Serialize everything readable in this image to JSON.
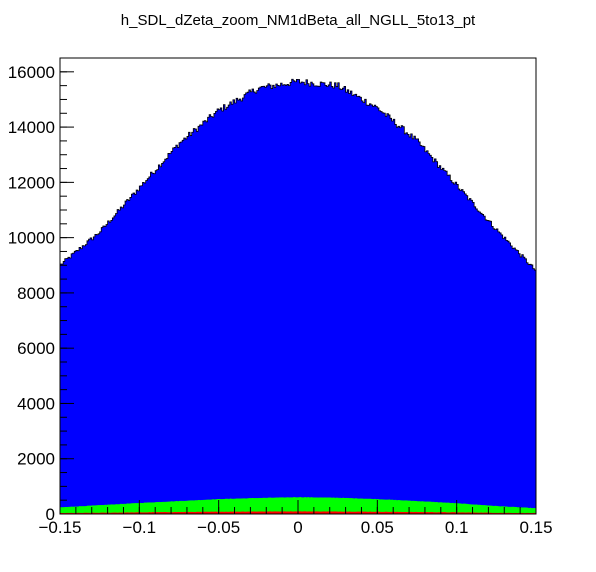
{
  "chart_data": {
    "type": "area",
    "title": "h_SDL_dZeta_zoom_NM1dBeta_all_NGLL_5to13_pt",
    "xlabel": "",
    "ylabel": "",
    "xlim": [
      -0.15,
      0.15
    ],
    "ylim": [
      0,
      16500
    ],
    "grid": false,
    "legend": "none",
    "x_ticks": [
      -0.15,
      -0.1,
      -0.05,
      0,
      0.05,
      0.1,
      0.15
    ],
    "x_tick_labels": [
      "−0.15",
      "−0.1",
      "−0.05",
      "0",
      "0.05",
      "0.1",
      "0.15"
    ],
    "y_ticks": [
      0,
      2000,
      4000,
      6000,
      8000,
      10000,
      12000,
      14000,
      16000
    ],
    "y_tick_labels": [
      "0",
      "2000",
      "4000",
      "6000",
      "8000",
      "10000",
      "12000",
      "14000",
      "16000"
    ],
    "x": [
      -0.15,
      -0.125,
      -0.1,
      -0.075,
      -0.05,
      -0.025,
      0,
      0.025,
      0.05,
      0.075,
      0.1,
      0.125,
      0.15
    ],
    "series": [
      {
        "color": "#0000ff",
        "values": [
          9000,
          10200,
          11800,
          13400,
          14600,
          15400,
          15650,
          15500,
          14700,
          13500,
          11900,
          10300,
          8800
        ]
      },
      {
        "color": "#00ff00",
        "values": [
          230,
          310,
          390,
          460,
          530,
          570,
          600,
          580,
          530,
          460,
          380,
          280,
          200
        ]
      },
      {
        "color": "#ff0000",
        "values": [
          25,
          35,
          50,
          62,
          72,
          80,
          85,
          80,
          72,
          62,
          50,
          35,
          25
        ]
      }
    ]
  }
}
